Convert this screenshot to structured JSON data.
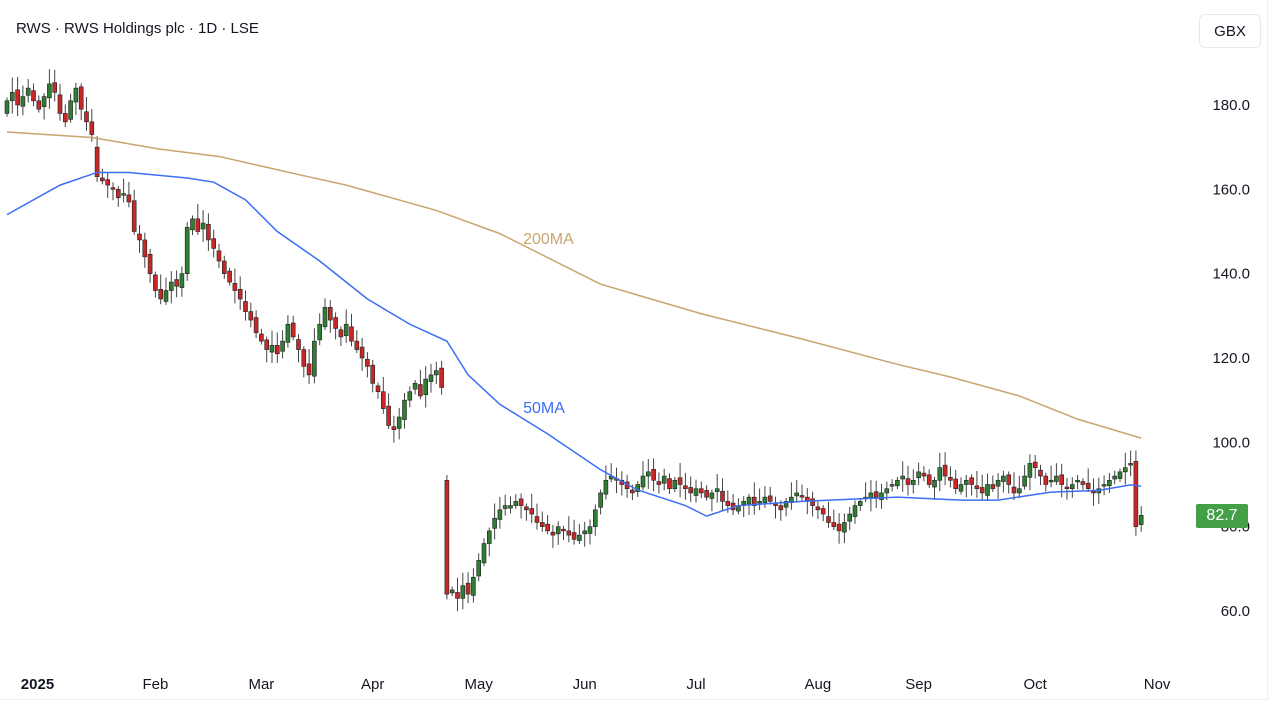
{
  "header": {
    "title": "RWS · RWS Holdings plc · 1D · LSE",
    "currency": "GBX"
  },
  "last_price": "82.7",
  "colors": {
    "up": "#2e7d32",
    "down": "#c62828",
    "ma50": "#3b6ef5",
    "ma200": "#c9a46e",
    "last_price_bg": "#43a047"
  },
  "chart_data": {
    "type": "candlestick",
    "title": "RWS · RWS Holdings plc · 1D · LSE",
    "ylim": [
      50,
      190
    ],
    "yticks": [
      "60.0",
      "80.0",
      "100.0",
      "120.0",
      "140.0",
      "160.0",
      "180.0"
    ],
    "ytick_values": [
      60,
      80,
      100,
      120,
      140,
      160,
      180
    ],
    "xticks": [
      {
        "label": "2025",
        "index": 6,
        "bold": true
      },
      {
        "label": "Feb",
        "index": 28
      },
      {
        "label": "Mar",
        "index": 48
      },
      {
        "label": "Apr",
        "index": 69
      },
      {
        "label": "May",
        "index": 89
      },
      {
        "label": "Jun",
        "index": 109
      },
      {
        "label": "Jul",
        "index": 130
      },
      {
        "label": "Aug",
        "index": 153
      },
      {
        "label": "Sep",
        "index": 172
      },
      {
        "label": "Oct",
        "index": 194
      },
      {
        "label": "Nov",
        "index": 217
      }
    ],
    "n_slots": 222,
    "closes": [
      181,
      183,
      180,
      182,
      184,
      181,
      179,
      182,
      185,
      183,
      178,
      176,
      181,
      184,
      179,
      176,
      173,
      163,
      162,
      161,
      160,
      158,
      159,
      157,
      150,
      148,
      144,
      140,
      136,
      134,
      136,
      138,
      137,
      140,
      151,
      153,
      150,
      152,
      148,
      146,
      143,
      140,
      138,
      136,
      134,
      131,
      129,
      126,
      124,
      122,
      123,
      121,
      124,
      128,
      125,
      122,
      118,
      116,
      124,
      128,
      132,
      129,
      127,
      125,
      128,
      124,
      122,
      120,
      118,
      114,
      112,
      108,
      104,
      103,
      106,
      110,
      112,
      114,
      111,
      115,
      116,
      117,
      113,
      64,
      65,
      63,
      66,
      64,
      68,
      72,
      76,
      79,
      82,
      84,
      85,
      85,
      86,
      85,
      84,
      83,
      81,
      80,
      79,
      78,
      80,
      79,
      78,
      77,
      78,
      79,
      80,
      84,
      88,
      91,
      92,
      91,
      90,
      89,
      88,
      90,
      92,
      93,
      91,
      90,
      92,
      89,
      91,
      90,
      89,
      88,
      89,
      88,
      87,
      88,
      89,
      86,
      85,
      84,
      85,
      86,
      87,
      85,
      86,
      87,
      86,
      85,
      84,
      86,
      87,
      88,
      87,
      86,
      85,
      84,
      83,
      81,
      80,
      79,
      81,
      83,
      85,
      86,
      87,
      88,
      87,
      88,
      89,
      90,
      91,
      92,
      90,
      91,
      93,
      92,
      90,
      91,
      94,
      92,
      91,
      89,
      90,
      91,
      90,
      89,
      88,
      90,
      89,
      91,
      92,
      90,
      88,
      89,
      92,
      95,
      94,
      92,
      90,
      91,
      92,
      90,
      89,
      90,
      91,
      90,
      89,
      88,
      89,
      90,
      91,
      92,
      93,
      94,
      95,
      80,
      82.7
    ],
    "open_overrides": {
      "0": 178,
      "17": 170,
      "34": 140,
      "83": 91,
      "213": 95.5,
      "214": 80.5
    },
    "series": [
      {
        "name": "200MA",
        "points": [
          [
            0,
            173.6
          ],
          [
            16,
            172.3
          ],
          [
            29,
            169.5
          ],
          [
            40,
            167.8
          ],
          [
            55,
            163.5
          ],
          [
            64,
            161
          ],
          [
            81,
            155
          ],
          [
            93,
            149.5
          ],
          [
            112,
            137.5
          ],
          [
            131,
            130.5
          ],
          [
            150,
            124.5
          ],
          [
            168,
            118.5
          ],
          [
            178,
            115.5
          ],
          [
            191,
            111
          ],
          [
            202,
            105.5
          ],
          [
            214,
            101
          ]
        ]
      },
      {
        "name": "50MA",
        "points": [
          [
            0,
            154
          ],
          [
            10,
            161
          ],
          [
            17,
            164
          ],
          [
            23,
            164
          ],
          [
            34,
            162.7
          ],
          [
            39,
            161.7
          ],
          [
            45,
            157.5
          ],
          [
            51,
            150
          ],
          [
            59,
            143
          ],
          [
            68,
            134
          ],
          [
            76,
            128
          ],
          [
            83,
            124
          ],
          [
            87,
            116
          ],
          [
            93,
            109
          ],
          [
            102,
            102
          ],
          [
            112,
            93.5
          ],
          [
            119,
            88.7
          ],
          [
            128,
            85
          ],
          [
            132,
            82.5
          ],
          [
            138,
            85
          ],
          [
            150,
            86
          ],
          [
            168,
            87
          ],
          [
            180,
            86.3
          ],
          [
            187,
            86.3
          ],
          [
            197,
            88.2
          ],
          [
            206,
            88.6
          ],
          [
            212,
            89.9
          ],
          [
            214,
            89.6
          ]
        ]
      }
    ],
    "annotations": [
      {
        "text": "200MA",
        "near_index": 97,
        "value": 147
      },
      {
        "text": "50MA",
        "near_index": 97,
        "value": 107
      }
    ]
  }
}
